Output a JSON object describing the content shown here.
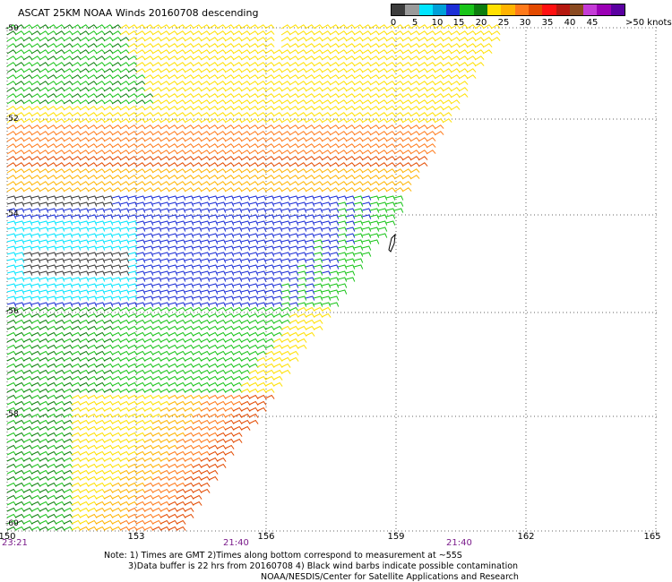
{
  "title": "ASCAT 25KM NOAA Winds 20160708 descending",
  "scale": {
    "colors": [
      "#3c3c3c",
      "#9a9a9a",
      "#00e5ff",
      "#00a0d8",
      "#1c2fd6",
      "#19c419",
      "#0d7d0d",
      "#ffe000",
      "#ffb300",
      "#ff7a1a",
      "#e34a00",
      "#ff1010",
      "#b5180f",
      "#8a4a20",
      "#c43bd6",
      "#9b00b5",
      "#5a00a0"
    ],
    "tick_labels": [
      "0",
      "5",
      "10",
      "15",
      "20",
      "25",
      "30",
      "35",
      "40",
      "45",
      ">50 knots"
    ]
  },
  "axes": {
    "x_labels": [
      "150",
      "153",
      "156",
      "159",
      "162",
      "165"
    ],
    "y_labels": [
      "-50",
      "-52",
      "-54",
      "-56",
      "-58",
      "-60"
    ]
  },
  "times": {
    "left": "23:21",
    "middle": "21:40",
    "right": "21:40"
  },
  "notes": {
    "line1": "Note: 1) Times are GMT 2)Times along bottom correspond to measurement at ~55S",
    "line2": "3)Data buffer is 22 hrs from 20160708 4) Black wind barbs indicate possible contamination",
    "line3": "NOAA/NESDIS/Center for Satellite Applications and Research"
  }
}
